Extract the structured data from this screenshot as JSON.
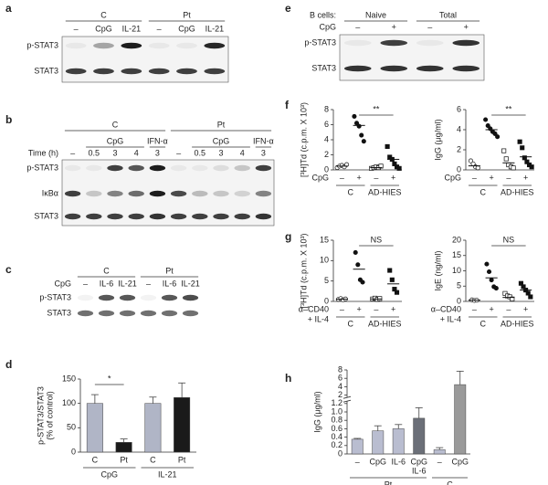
{
  "panel_labels": [
    "a",
    "b",
    "c",
    "d",
    "e",
    "f",
    "g",
    "h"
  ],
  "blots": {
    "a": {
      "groups": [
        "C",
        "Pt"
      ],
      "lanes": [
        "–",
        "CpG",
        "IL-21",
        "–",
        "CpG",
        "IL-21"
      ],
      "rows": [
        "p-STAT3",
        "STAT3"
      ]
    },
    "b": {
      "groups": [
        "C",
        "Pt"
      ],
      "row_label": "Time (h)",
      "lanes": [
        "–",
        "0.5",
        "3",
        "4",
        "3",
        "–",
        "0.5",
        "3",
        "4",
        "3"
      ],
      "treatments": [
        "CpG",
        "IFN-α",
        "CpG",
        "IFN-α"
      ],
      "rows": [
        "p-STAT3",
        "IκBα",
        "STAT3"
      ]
    },
    "c": {
      "groups": [
        "C",
        "Pt"
      ],
      "row_label": "CpG",
      "lanes": [
        "–",
        "IL-6",
        "IL-21",
        "–",
        "IL-6",
        "IL-21"
      ],
      "rows": [
        "p-STAT3",
        "STAT3"
      ]
    },
    "e": {
      "header_label": "B cells:",
      "groups": [
        "Naive",
        "Total"
      ],
      "row_label": "CpG",
      "lanes": [
        "–",
        "+",
        "–",
        "+"
      ],
      "rows": [
        "p-STAT3",
        "STAT3"
      ]
    }
  },
  "chart_data": [
    {
      "type": "bar",
      "ylabel": [
        "p-STAT3/STAT3",
        "(% of control)"
      ],
      "categories": [
        "C",
        "Pt",
        "C",
        "Pt"
      ],
      "groups": [
        "CpG",
        "IL-21"
      ],
      "values": [
        100,
        20,
        100,
        112
      ],
      "errors": [
        18,
        7,
        13,
        30
      ],
      "colors": [
        "#b0b5c6",
        "#1a1a1a",
        "#b0b5c6",
        "#1a1a1a"
      ],
      "ylim": [
        0,
        150
      ],
      "yticks": [
        0,
        50,
        100,
        150
      ],
      "annotation": "*"
    },
    {
      "type": "strip",
      "ylabel": "[³H]Td (c.p.m. X 10³)",
      "xrow_label": [
        "CpG"
      ],
      "categories": [
        "–",
        "+",
        "–",
        "+"
      ],
      "groups": [
        "C",
        "AD-HIES"
      ],
      "points": [
        [
          0.3,
          0.5,
          0.6,
          0.4,
          0.7
        ],
        [
          7.1,
          6.2,
          5.8,
          4.6,
          3.8
        ],
        [
          0.2,
          0.3,
          0.4,
          0.3,
          0.5
        ],
        [
          3.1,
          1.7,
          1.4,
          0.8,
          0.4,
          0.2
        ]
      ],
      "means": [
        0.5,
        5.9,
        0.3,
        1.4
      ],
      "markers": [
        "circle",
        "circle",
        "square",
        "square"
      ],
      "filled": [
        false,
        true,
        false,
        true
      ],
      "ylim": [
        0,
        8
      ],
      "yticks": [
        0,
        2,
        4,
        6,
        8
      ],
      "annotation": "**"
    },
    {
      "type": "strip",
      "ylabel": "IgG (μg/ml)",
      "xrow_label": [
        "CpG"
      ],
      "categories": [
        "–",
        "+",
        "–",
        "+"
      ],
      "groups": [
        "C",
        "AD-HIES"
      ],
      "points": [
        [
          0.9,
          0.6,
          0.3,
          0.2
        ],
        [
          5.0,
          4.4,
          4.1,
          3.8,
          3.6,
          3.3
        ],
        [
          1.9,
          1.1,
          0.5,
          0.3,
          0.2
        ],
        [
          2.8,
          2.2,
          1.2,
          0.8,
          0.5,
          0.3
        ]
      ],
      "means": [
        0.4,
        4.0,
        0.7,
        1.3
      ],
      "markers": [
        "circle",
        "circle",
        "square",
        "square"
      ],
      "filled": [
        false,
        true,
        false,
        true
      ],
      "ylim": [
        0,
        6
      ],
      "yticks": [
        0,
        2,
        4,
        6
      ],
      "annotation": "**"
    },
    {
      "type": "strip",
      "ylabel": "[³H]Td (c.p.m. X 10³)",
      "xrow_label": [
        "α–CD40",
        "+ IL-4"
      ],
      "categories": [
        "–",
        "+",
        "–",
        "+"
      ],
      "groups": [
        "C",
        "AD-HIES"
      ],
      "points": [
        [
          0.5,
          0.7,
          0.4,
          0.6
        ],
        [
          12.0,
          9.0,
          5.3,
          4.7
        ],
        [
          0.6,
          0.8,
          0.5,
          0.7
        ],
        [
          7.6,
          5.3,
          3.0,
          2.2
        ]
      ],
      "means": [
        0.55,
        7.9,
        0.6,
        4.3
      ],
      "markers": [
        "circle",
        "circle",
        "square",
        "square"
      ],
      "filled": [
        false,
        true,
        false,
        true
      ],
      "ylim": [
        0,
        15
      ],
      "yticks": [
        0,
        5,
        10,
        15
      ],
      "annotation": "NS"
    },
    {
      "type": "strip",
      "ylabel": "IgE (ng/ml)",
      "xrow_label": [
        "α–CD40",
        "+ IL-4"
      ],
      "categories": [
        "–",
        "+",
        "–",
        "+"
      ],
      "groups": [
        "C",
        "AD-HIES"
      ],
      "points": [
        [
          0.5,
          0.3,
          0.4
        ],
        [
          12.2,
          9.7,
          7.0,
          4.8,
          4.3
        ],
        [
          2.6,
          1.8,
          1.5,
          0.8
        ],
        [
          5.9,
          4.8,
          3.7,
          2.7,
          1.5
        ]
      ],
      "means": [
        0.4,
        7.7,
        1.3,
        3.7
      ],
      "markers": [
        "circle",
        "circle",
        "square",
        "square"
      ],
      "filled": [
        false,
        true,
        false,
        true
      ],
      "ylim": [
        0,
        20
      ],
      "yticks": [
        0,
        5,
        10,
        15,
        20
      ],
      "annotation": "NS"
    },
    {
      "type": "bar",
      "ylabel": [
        "IgG (μg/ml)"
      ],
      "categories": [
        "–",
        "CpG",
        "IL-6",
        [
          "CpG",
          "IL-6"
        ],
        "–",
        "CpG"
      ],
      "groups": [
        "Pt",
        "C"
      ],
      "group_sizes": [
        4,
        2
      ],
      "values": [
        0.35,
        0.55,
        0.6,
        0.85,
        0.1,
        4.5
      ],
      "errors": [
        0.02,
        0.12,
        0.1,
        0.25,
        0.05,
        3.2
      ],
      "colors": [
        "#b9bdd0",
        "#b9bdd0",
        "#b9bdd0",
        "#6b6f78",
        "#b9bdd0",
        "#9a9a9a"
      ],
      "ylim": [
        0,
        8
      ],
      "yticks": [
        0,
        0.2,
        0.4,
        0.6,
        0.8,
        {
          "value": 1,
          "label": "1.0"
        },
        1.2,
        2,
        4,
        6,
        8
      ],
      "axis_break": true
    }
  ]
}
